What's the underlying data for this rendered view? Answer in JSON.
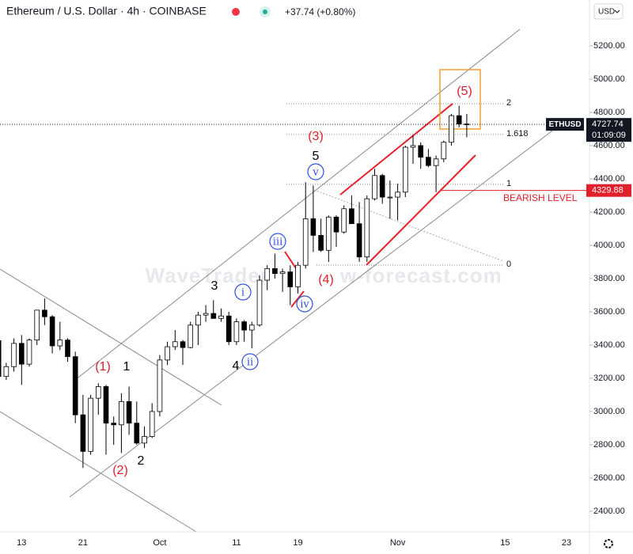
{
  "chart_data": {
    "type": "candlestick",
    "title": "Ethereum / U.S. Dollar · 4h · COINBASE",
    "subtitle": "+37.74 (+0.80%)",
    "currency": "USD",
    "watermark": [
      "WaveTrader",
      "w-forecast.com"
    ],
    "symbol": "ETHUSD",
    "last_price": 4727.74,
    "countdown": "01:09:09",
    "bearish_level": {
      "value": 4329.88,
      "label": "BEARISH LEVEL",
      "color": "#e0202a"
    },
    "up_color": "#ffffff",
    "down_color": "#000000",
    "categories": [
      null,
      null,
      null,
      "13",
      null,
      null,
      null,
      null,
      null,
      null,
      null,
      "21",
      null,
      null,
      null,
      null,
      null,
      null,
      null,
      null,
      null,
      "Oct",
      null,
      null,
      null,
      null,
      null,
      null,
      null,
      null,
      null,
      "11",
      null,
      null,
      null,
      null,
      null,
      null,
      null,
      "19",
      null,
      null,
      null,
      null,
      null,
      null,
      null,
      null,
      null,
      null,
      null,
      null,
      "Nov",
      null,
      null,
      null,
      null,
      null,
      null,
      null,
      null,
      null,
      null,
      null,
      null,
      null,
      "15",
      null,
      null,
      null,
      null,
      null,
      null,
      null,
      "23",
      null,
      null
    ],
    "open": [
      3427,
      3211,
      3270,
      3410,
      3285,
      3430,
      3610,
      3570,
      3395,
      3430,
      3330,
      2980,
      2760,
      3080,
      3150,
      2930,
      2920,
      3060,
      2930,
      2810,
      2850,
      3000,
      3310,
      3390,
      3420,
      3385,
      3520,
      3580,
      3590,
      3560,
      3575,
      3420,
      3540,
      3490,
      3520,
      3790,
      3860,
      3830,
      3840,
      3750,
      3880,
      4160,
      4060,
      3970,
      4170,
      4080,
      4220,
      4130,
      3930,
      4280,
      4420,
      4290,
      4290,
      4320,
      4590,
      4600,
      4530,
      4480,
      4520,
      4620,
      4780,
      4730,
      null,
      null,
      null,
      null,
      null,
      null,
      null,
      null,
      null,
      null,
      null,
      null,
      null,
      null,
      null
    ],
    "high": [
      3517,
      3293,
      3440,
      3460,
      3440,
      3610,
      3680,
      3580,
      3540,
      3440,
      3360,
      3100,
      3100,
      3170,
      3160,
      2970,
      3110,
      3150,
      3060,
      2910,
      3050,
      3340,
      3420,
      3490,
      3430,
      3540,
      3600,
      3640,
      3670,
      3620,
      3600,
      3560,
      3550,
      3540,
      3820,
      3880,
      3950,
      3860,
      3880,
      3900,
      4380,
      4360,
      4160,
      4180,
      4180,
      4240,
      4300,
      4260,
      4300,
      4460,
      4430,
      4390,
      4370,
      4600,
      4660,
      4620,
      4580,
      4540,
      4630,
      4790,
      4840,
      4790,
      null,
      null,
      null,
      null,
      null,
      null,
      null,
      null,
      null,
      null,
      null,
      null,
      null,
      null,
      null
    ],
    "low": [
      3210,
      3190,
      3240,
      3160,
      3270,
      3400,
      3520,
      3350,
      3370,
      3300,
      2930,
      2660,
      2740,
      2980,
      2740,
      2800,
      2750,
      2860,
      2800,
      2780,
      2840,
      2970,
      3280,
      3370,
      3280,
      3380,
      3400,
      3540,
      3560,
      3540,
      3400,
      3400,
      3420,
      3380,
      3510,
      3730,
      3800,
      3720,
      3640,
      3710,
      3860,
      3960,
      3960,
      3900,
      3990,
      4070,
      4130,
      3900,
      3900,
      4270,
      4250,
      4160,
      4150,
      4290,
      4490,
      4460,
      4470,
      4320,
      4500,
      4600,
      4710,
      4650,
      null,
      null,
      null,
      null,
      null,
      null,
      null,
      null,
      null,
      null,
      null,
      null,
      null,
      null,
      null
    ],
    "close": [
      3211,
      3270,
      3410,
      3285,
      3430,
      3610,
      3570,
      3395,
      3430,
      3330,
      2980,
      2760,
      3080,
      3150,
      2930,
      2920,
      3060,
      2930,
      2810,
      2850,
      3000,
      3310,
      3390,
      3420,
      3385,
      3520,
      3580,
      3590,
      3560,
      3575,
      3420,
      3540,
      3490,
      3520,
      3790,
      3860,
      3830,
      3840,
      3750,
      3880,
      4160,
      4060,
      3970,
      4170,
      4080,
      4220,
      4130,
      3930,
      4280,
      4420,
      4290,
      4290,
      4320,
      4590,
      4600,
      4530,
      4480,
      4520,
      4620,
      4780,
      4730,
      4727.74,
      null,
      null,
      null,
      null,
      null,
      null,
      null,
      null,
      null,
      null,
      null,
      null,
      null,
      null,
      null
    ],
    "ylim": [
      2276,
      5476
    ],
    "yticks": [
      {
        "value": 2400,
        "label": "2400.00"
      },
      {
        "value": 2600,
        "label": "2600.00"
      },
      {
        "value": 2800,
        "label": "2800.00"
      },
      {
        "value": 3000,
        "label": "3000.00"
      },
      {
        "value": 3200,
        "label": "3200.00"
      },
      {
        "value": 3400,
        "label": "3400.00"
      },
      {
        "value": 3600,
        "label": "3600.00"
      },
      {
        "value": 3800,
        "label": "3800.00"
      },
      {
        "value": 4000,
        "label": "4000.00"
      },
      {
        "value": 4200,
        "label": "4200.00"
      },
      {
        "value": 4400,
        "label": "4400.00"
      },
      {
        "value": 4600,
        "label": "4600.00"
      },
      {
        "value": 4800,
        "label": "4800.00"
      },
      {
        "value": 5000,
        "label": "5000.00"
      },
      {
        "value": 5200,
        "label": "5200.00"
      }
    ],
    "fib_levels": [
      {
        "ratio": 2,
        "price": 4852
      },
      {
        "ratio": 1.618,
        "price": 4667
      },
      {
        "ratio": 1,
        "price": 4367
      },
      {
        "ratio": 0,
        "price": 3881
      }
    ],
    "wave_labels": [
      {
        "text": "(1)",
        "color": "#e0202a"
      },
      {
        "text": "(2)",
        "color": "#e0202a"
      },
      {
        "text": "(3)",
        "color": "#e0202a"
      },
      {
        "text": "(4)",
        "color": "#e0202a"
      },
      {
        "text": "(5)",
        "color": "#e0202a"
      },
      {
        "text": "1",
        "color": "#000000"
      },
      {
        "text": "2",
        "color": "#000000"
      },
      {
        "text": "3",
        "color": "#000000"
      },
      {
        "text": "4",
        "color": "#000000"
      },
      {
        "text": "5",
        "color": "#000000"
      },
      {
        "text": "i",
        "color": "#2f4fd8"
      },
      {
        "text": "ii",
        "color": "#2f4fd8"
      },
      {
        "text": "iii",
        "color": "#2f4fd8"
      },
      {
        "text": "iv",
        "color": "#2f4fd8"
      },
      {
        "text": "v",
        "color": "#2f4fd8"
      }
    ]
  }
}
